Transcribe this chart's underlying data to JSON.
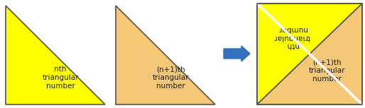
{
  "yellow_color": "#FFFF00",
  "orange_color": "#F5C878",
  "arrow_color": "#3570C0",
  "text_color": "#1A1A1A",
  "bg_color": "#FFFFFF",
  "tri1_label": "nth\ntriangular\nnumber",
  "tri2_label": "(n+1)th\ntriangular\nnumber",
  "tri3_upper_label": "nth\ntriangular\nnumber",
  "tri3_lower_label": "(n+1)th\ntriangular\nnumber",
  "font_size": 7.5,
  "fig_width": 5.14,
  "fig_height": 1.53,
  "dpi": 100
}
